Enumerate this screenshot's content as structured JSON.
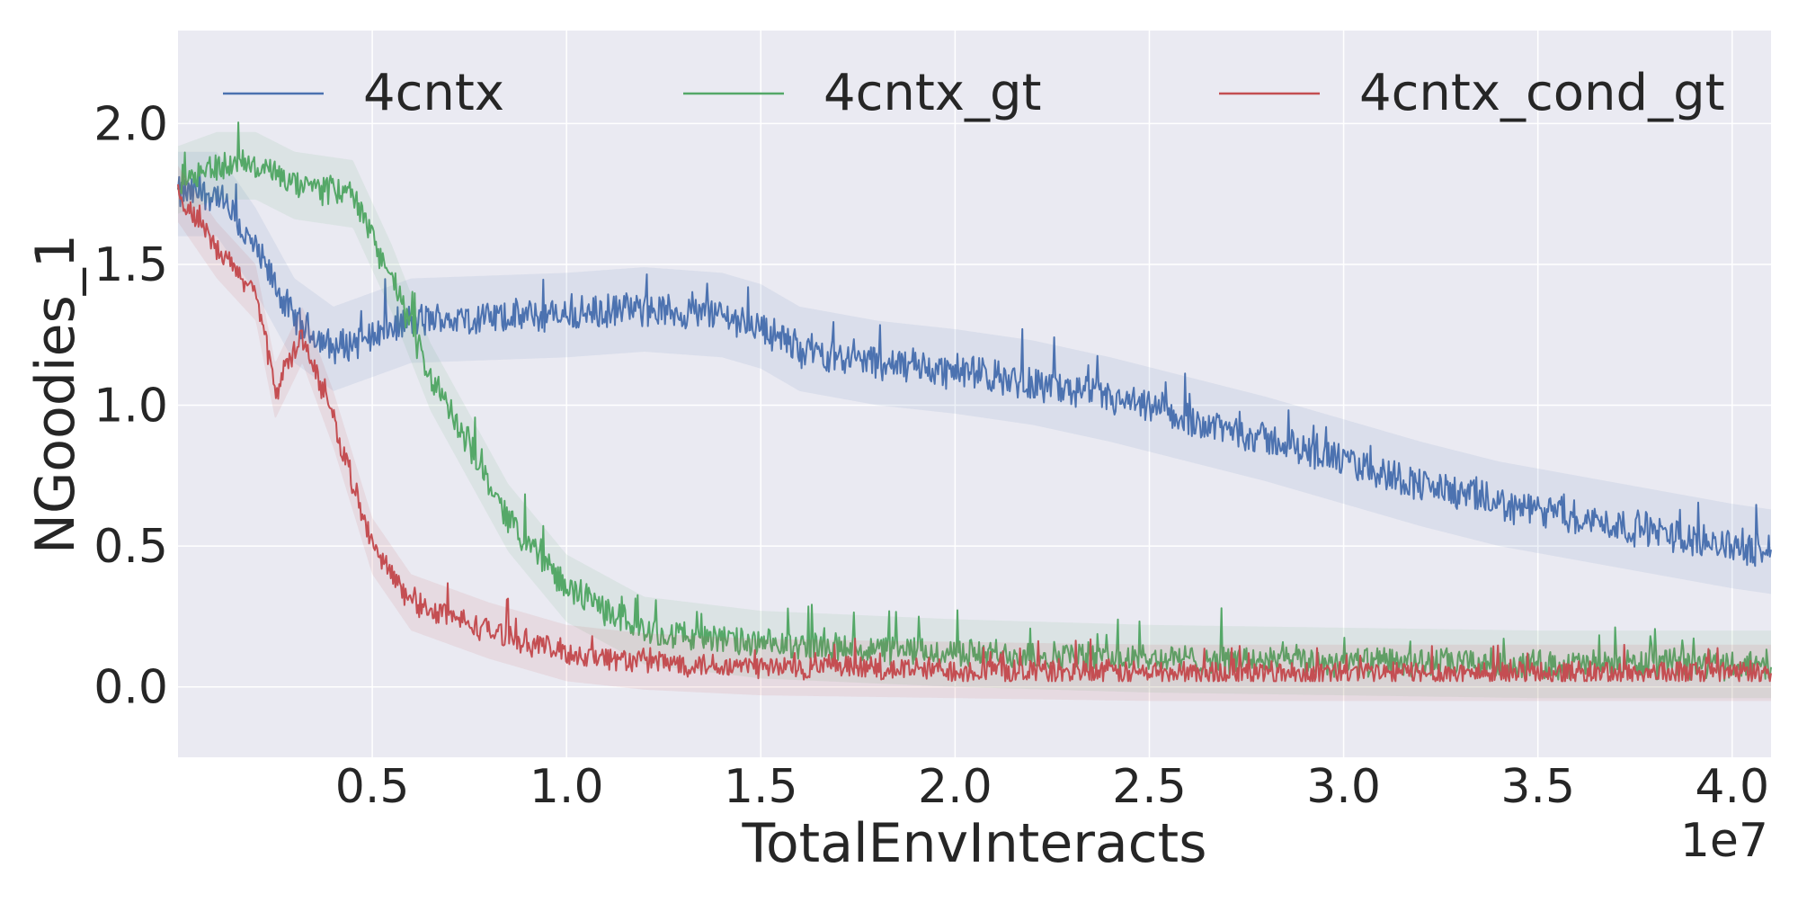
{
  "chart_data": {
    "type": "line",
    "title": "",
    "xlabel": "TotalEnvInteracts",
    "ylabel": "NGoodies_1",
    "x_offset_label": "1e7",
    "xlim": [
      0.0,
      4.1
    ],
    "ylim": [
      -0.25,
      2.33
    ],
    "xticks": [
      0.5,
      1.0,
      1.5,
      2.0,
      2.5,
      3.0,
      3.5,
      4.0
    ],
    "xtick_labels": [
      "0.5",
      "1.0",
      "1.5",
      "2.0",
      "2.5",
      "3.0",
      "3.5",
      "4.0"
    ],
    "yticks": [
      0.0,
      0.5,
      1.0,
      1.5,
      2.0
    ],
    "ytick_labels": [
      "0.0",
      "0.5",
      "1.0",
      "1.5",
      "2.0"
    ],
    "grid": true,
    "legend_position": "top",
    "background_color": "#eaeaf2",
    "series": [
      {
        "name": "4cntx",
        "color": "#4c72b0",
        "x": [
          0.0,
          0.1,
          0.2,
          0.3,
          0.4,
          0.5,
          0.6,
          0.8,
          1.0,
          1.2,
          1.4,
          1.5,
          1.6,
          1.8,
          2.0,
          2.2,
          2.4,
          2.6,
          2.8,
          3.0,
          3.2,
          3.4,
          3.6,
          3.8,
          4.0,
          4.1
        ],
        "y": [
          1.75,
          1.75,
          1.55,
          1.3,
          1.2,
          1.25,
          1.3,
          1.31,
          1.32,
          1.34,
          1.32,
          1.28,
          1.2,
          1.15,
          1.12,
          1.08,
          1.02,
          0.95,
          0.88,
          0.8,
          0.72,
          0.65,
          0.6,
          0.55,
          0.5,
          0.48
        ],
        "noise": 0.07,
        "band": 0.15
      },
      {
        "name": "4cntx_gt",
        "color": "#55a868",
        "x": [
          0.0,
          0.1,
          0.2,
          0.3,
          0.45,
          0.55,
          0.65,
          0.75,
          0.85,
          1.0,
          1.2,
          1.5,
          2.0,
          2.5,
          3.0,
          3.5,
          4.0,
          4.1
        ],
        "y": [
          1.8,
          1.85,
          1.85,
          1.78,
          1.75,
          1.45,
          1.1,
          0.85,
          0.6,
          0.35,
          0.2,
          0.15,
          0.12,
          0.1,
          0.09,
          0.08,
          0.08,
          0.08
        ],
        "noise": 0.06,
        "band": 0.12
      },
      {
        "name": "4cntx_cond_gt",
        "color": "#c44e52",
        "x": [
          0.0,
          0.1,
          0.2,
          0.25,
          0.32,
          0.4,
          0.5,
          0.6,
          0.8,
          1.0,
          1.2,
          1.5,
          2.0,
          2.5,
          3.0,
          3.5,
          4.0,
          4.1
        ],
        "y": [
          1.75,
          1.55,
          1.4,
          1.05,
          1.25,
          0.95,
          0.5,
          0.3,
          0.2,
          0.12,
          0.09,
          0.07,
          0.06,
          0.05,
          0.05,
          0.05,
          0.05,
          0.05
        ],
        "noise": 0.05,
        "band": 0.1
      }
    ]
  }
}
